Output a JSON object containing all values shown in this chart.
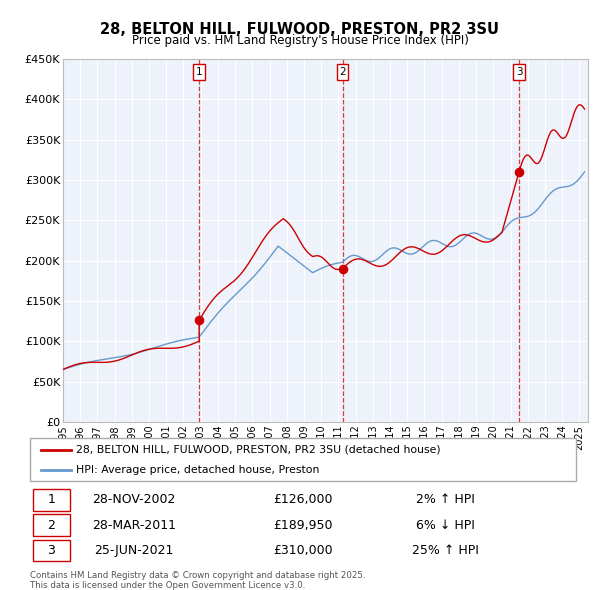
{
  "title": "28, BELTON HILL, FULWOOD, PRESTON, PR2 3SU",
  "subtitle": "Price paid vs. HM Land Registry's House Price Index (HPI)",
  "legend_entries": [
    "28, BELTON HILL, FULWOOD, PRESTON, PR2 3SU (detached house)",
    "HPI: Average price, detached house, Preston"
  ],
  "transactions": [
    {
      "n": 1,
      "date": "28-NOV-2002",
      "price": 126000,
      "pct": "2%",
      "dir": "↑"
    },
    {
      "n": 2,
      "date": "28-MAR-2011",
      "price": 189950,
      "pct": "6%",
      "dir": "↓"
    },
    {
      "n": 3,
      "date": "25-JUN-2021",
      "price": 310000,
      "pct": "25%",
      "dir": "↑"
    }
  ],
  "transaction_dates_decimal": [
    2002.91,
    2011.24,
    2021.49
  ],
  "transaction_prices": [
    126000,
    189950,
    310000
  ],
  "vline_dates": [
    2002.91,
    2011.24,
    2021.49
  ],
  "footnote": "Contains HM Land Registry data © Crown copyright and database right 2025.\nThis data is licensed under the Open Government Licence v3.0.",
  "property_line_color": "#cc0000",
  "hpi_line_color": "#6699cc",
  "vline_color": "#cc0000",
  "plot_bg_color": "#eef2fb",
  "ylim": [
    0,
    450000
  ],
  "xlim_start": 1995.0,
  "xlim_end": 2025.5,
  "ytick_values": [
    0,
    50000,
    100000,
    150000,
    200000,
    250000,
    300000,
    350000,
    400000,
    450000
  ],
  "ytick_labels": [
    "£0",
    "£50K",
    "£100K",
    "£150K",
    "£200K",
    "£250K",
    "£300K",
    "£350K",
    "£400K",
    "£450K"
  ]
}
